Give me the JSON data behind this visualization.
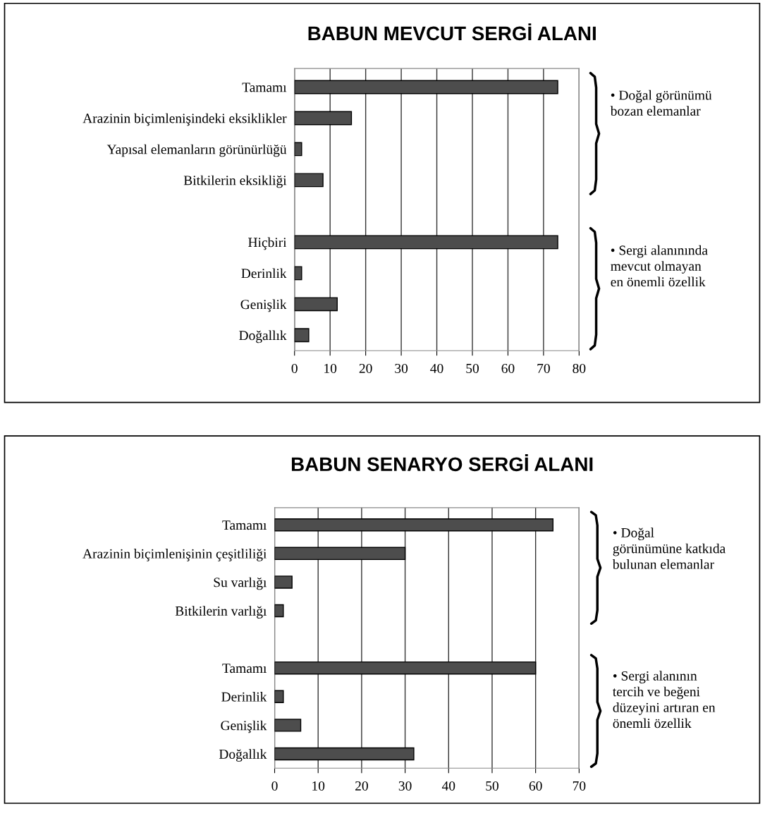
{
  "chart_data": [
    {
      "type": "bar",
      "orientation": "horizontal",
      "title": "BABUN MEVCUT SERGİ ALANI",
      "categories": [
        "Tamamı",
        "Arazinin biçimlenişindeki eksiklikler",
        "Yapısal elemanların görünürlüğü",
        "Bitkilerin eksikliği",
        null,
        "Hiçbiri",
        "Derinlik",
        "Genişlik",
        "Doğallık"
      ],
      "values": [
        74,
        16,
        2,
        8,
        null,
        74,
        2,
        12,
        4
      ],
      "color": "#4d4d4d",
      "xlim": [
        0,
        80
      ],
      "xticks": [
        0,
        10,
        20,
        30,
        40,
        50,
        60,
        70,
        80
      ],
      "grid": "x",
      "legend": false,
      "annotations": [
        "• Doğal görünümü\nbozan elemanlar",
        "• Sergi alanınında\nmevcut olmayan\nen önemli özellik"
      ]
    },
    {
      "type": "bar",
      "orientation": "horizontal",
      "title": "BABUN SENARYO SERGİ ALANI",
      "categories": [
        "Tamamı",
        "Arazinin biçimlenişinin çeşitliliği",
        "Su varlığı",
        "Bitkilerin varlığı",
        null,
        "Tamamı",
        "Derinlik",
        "Genişlik",
        "Doğallık"
      ],
      "values": [
        64,
        30,
        4,
        2,
        null,
        60,
        2,
        6,
        32
      ],
      "color": "#4d4d4d",
      "xlim": [
        0,
        70
      ],
      "xticks": [
        0,
        10,
        20,
        30,
        40,
        50,
        60,
        70
      ],
      "grid": "x",
      "legend": false,
      "annotations": [
        "• Doğal\ngörünümüne katkıda\nbulunan elemanlar",
        "• Sergi alanının\ntercih ve beğeni\ndüzeyini artıran en\nönemli özellik"
      ]
    }
  ]
}
